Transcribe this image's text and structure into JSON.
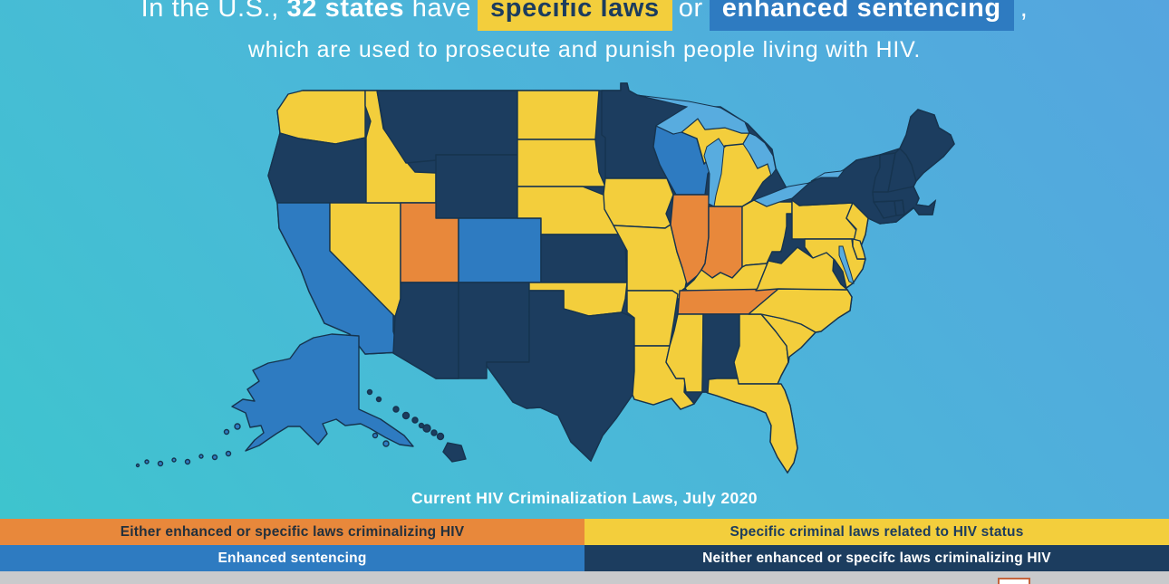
{
  "title": {
    "line1_segments": [
      {
        "name": "title-text-intro",
        "style": "plain",
        "text": "In the U.S., "
      },
      {
        "name": "title-emph-32-states",
        "style": "bold",
        "text": "32 states"
      },
      {
        "name": "title-text-have",
        "style": "plain",
        "text": " have"
      },
      {
        "name": "highlight-specific-laws",
        "style": "hl-yellow",
        "text": "specific laws"
      },
      {
        "name": "title-text-or",
        "style": "plain",
        "text": "or"
      },
      {
        "name": "highlight-enhanced-sentencing",
        "style": "hl-blue",
        "text": "enhanced sentencing"
      },
      {
        "name": "title-text-comma",
        "style": "plain",
        "text": ","
      }
    ],
    "line2": "which are used to prosecute and punish people living with HIV."
  },
  "map": {
    "caption": "Current HIV Criminalization Laws, July 2020",
    "border_color": "#16344F",
    "categories": {
      "either": {
        "label": "Either enhanced or specific laws criminalizing HIV",
        "color": "#E8883B",
        "text_color": "#23303C"
      },
      "specific": {
        "label": "Specific criminal laws related to HIV status",
        "color": "#F3CE3C",
        "text_color": "#1C3C5E"
      },
      "enhanced": {
        "label": "Enhanced sentencing",
        "color": "#2E7BC1",
        "text_color": "#FFFFFF"
      },
      "neither": {
        "label": "Neither enhanced or specifc laws criminalizing HIV",
        "color": "#1C3D5F",
        "text_color": "#FFFFFF"
      }
    },
    "states": [
      {
        "id": "WA",
        "name": "Washington",
        "category": "specific"
      },
      {
        "id": "OR",
        "name": "Oregon",
        "category": "neither"
      },
      {
        "id": "CA",
        "name": "California",
        "category": "enhanced"
      },
      {
        "id": "NV",
        "name": "Nevada",
        "category": "specific"
      },
      {
        "id": "ID",
        "name": "Idaho",
        "category": "specific"
      },
      {
        "id": "MT",
        "name": "Montana",
        "category": "neither"
      },
      {
        "id": "WY",
        "name": "Wyoming",
        "category": "neither"
      },
      {
        "id": "UT",
        "name": "Utah",
        "category": "either"
      },
      {
        "id": "CO",
        "name": "Colorado",
        "category": "enhanced"
      },
      {
        "id": "AZ",
        "name": "Arizona",
        "category": "neither"
      },
      {
        "id": "NM",
        "name": "New Mexico",
        "category": "neither"
      },
      {
        "id": "ND",
        "name": "North Dakota",
        "category": "specific"
      },
      {
        "id": "SD",
        "name": "South Dakota",
        "category": "specific"
      },
      {
        "id": "NE",
        "name": "Nebraska",
        "category": "specific"
      },
      {
        "id": "KS",
        "name": "Kansas",
        "category": "neither"
      },
      {
        "id": "OK",
        "name": "Oklahoma",
        "category": "specific"
      },
      {
        "id": "TX",
        "name": "Texas",
        "category": "neither"
      },
      {
        "id": "MN",
        "name": "Minnesota",
        "category": "neither"
      },
      {
        "id": "IA",
        "name": "Iowa",
        "category": "specific"
      },
      {
        "id": "MO",
        "name": "Missouri",
        "category": "specific"
      },
      {
        "id": "AR",
        "name": "Arkansas",
        "category": "specific"
      },
      {
        "id": "LA",
        "name": "Louisiana",
        "category": "specific"
      },
      {
        "id": "WI",
        "name": "Wisconsin",
        "category": "enhanced"
      },
      {
        "id": "IL",
        "name": "Illinois",
        "category": "either"
      },
      {
        "id": "IN",
        "name": "Indiana",
        "category": "either"
      },
      {
        "id": "OH",
        "name": "Ohio",
        "category": "specific"
      },
      {
        "id": "MI",
        "name": "Michigan",
        "category": "specific"
      },
      {
        "id": "KY",
        "name": "Kentucky",
        "category": "specific"
      },
      {
        "id": "TN",
        "name": "Tennessee",
        "category": "either"
      },
      {
        "id": "MS",
        "name": "Mississippi",
        "category": "specific"
      },
      {
        "id": "AL",
        "name": "Alabama",
        "category": "neither"
      },
      {
        "id": "GA",
        "name": "Georgia",
        "category": "specific"
      },
      {
        "id": "FL",
        "name": "Florida",
        "category": "specific"
      },
      {
        "id": "SC",
        "name": "South Carolina",
        "category": "specific"
      },
      {
        "id": "NC",
        "name": "North Carolina",
        "category": "specific"
      },
      {
        "id": "VA",
        "name": "Virginia",
        "category": "specific"
      },
      {
        "id": "WV",
        "name": "West Virginia",
        "category": "neither"
      },
      {
        "id": "PA",
        "name": "Pennsylvania",
        "category": "specific"
      },
      {
        "id": "NY",
        "name": "New York",
        "category": "neither"
      },
      {
        "id": "NJ",
        "name": "New Jersey",
        "category": "specific"
      },
      {
        "id": "MD",
        "name": "Maryland",
        "category": "specific"
      },
      {
        "id": "DE",
        "name": "Delaware",
        "category": "specific"
      },
      {
        "id": "CT",
        "name": "Connecticut",
        "category": "neither"
      },
      {
        "id": "RI",
        "name": "Rhode Island",
        "category": "neither"
      },
      {
        "id": "MA",
        "name": "Massachusetts",
        "category": "neither"
      },
      {
        "id": "VT",
        "name": "Vermont",
        "category": "neither"
      },
      {
        "id": "NH",
        "name": "New Hampshire",
        "category": "neither"
      },
      {
        "id": "ME",
        "name": "Maine",
        "category": "neither"
      },
      {
        "id": "AK",
        "name": "Alaska",
        "category": "enhanced"
      },
      {
        "id": "HI",
        "name": "Hawaii",
        "category": "neither"
      }
    ]
  },
  "legend": {
    "order": [
      "either",
      "specific",
      "enhanced",
      "neither"
    ]
  },
  "colors": {
    "background_start": "#3DC5CD",
    "background_end": "#55A5DF",
    "lake": "#58ACDF",
    "bottom_strip": "#C9CACC",
    "title_text": "#FFFFFF",
    "logo_border": "#C4643C"
  }
}
